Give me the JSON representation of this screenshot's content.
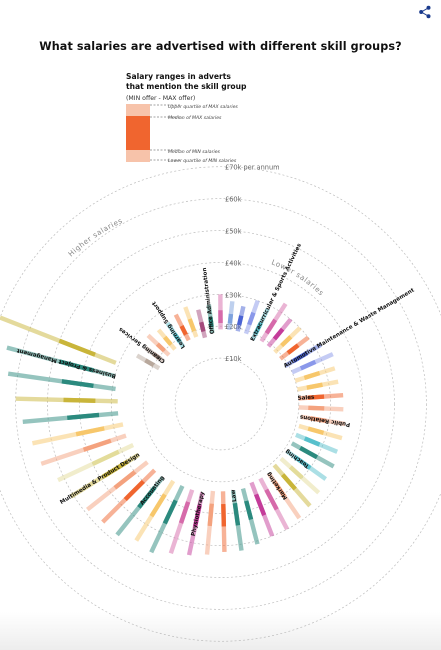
{
  "page": {
    "title": "What salaries are advertised with different skill groups?",
    "share_icon": "share-icon"
  },
  "legend": {
    "title_line1": "Salary ranges in adverts",
    "title_line2": "that mention the skill group",
    "subtitle": "(MIN offer - MAX offer)",
    "items": [
      "Upper quartile of MAX salaries",
      "Median of MAX salaries",
      "Median of MIN salaries",
      "Lower quartile of MIN salaries"
    ],
    "colors": {
      "outer": "#f7c3aa",
      "inner": "#f0652f"
    }
  },
  "labels": {
    "per_annum": "per annum",
    "higher": "Higher salaries",
    "lower": "Lower salaries"
  },
  "chart_data": {
    "type": "radial-range",
    "title": "What salaries are advertised with different skill groups?",
    "value_unit": "£k per annum",
    "rings": [
      {
        "value": 10,
        "label": "£10k"
      },
      {
        "value": 20,
        "label": "£20k"
      },
      {
        "value": 30,
        "label": "£30k"
      },
      {
        "value": 40,
        "label": "£40k"
      },
      {
        "value": 50,
        "label": "£50k"
      },
      {
        "value": 60,
        "label": "£60k"
      },
      {
        "value": 70,
        "label": "£70k"
      }
    ],
    "ordering": "bars sorted clockwise from lower salaries to higher salaries",
    "series_fields": [
      "lq_min",
      "med_min",
      "med_max",
      "uq_max"
    ],
    "skills": [
      {
        "name": "",
        "color": "#b8a89c",
        "values": [
          18,
          20,
          23,
          26
        ]
      },
      {
        "name": "Cleaning Services",
        "color": "#a88f84",
        "values": [
          18,
          19.5,
          22,
          25
        ]
      },
      {
        "name": "",
        "color": "#f4a27e",
        "values": [
          18,
          20,
          23,
          27
        ]
      },
      {
        "name": "",
        "color": "#f7c76b",
        "values": [
          18,
          20,
          23,
          26
        ]
      },
      {
        "name": "Learning Support",
        "color": "#57c0cc",
        "values": [
          17,
          19,
          22,
          26
        ]
      },
      {
        "name": "",
        "color": "#f0652f",
        "values": [
          18,
          20,
          23,
          27
        ]
      },
      {
        "name": "",
        "color": "#f7c76b",
        "values": [
          18,
          20,
          24,
          28
        ]
      },
      {
        "name": "",
        "color": "#a44a7c",
        "values": [
          17,
          19,
          22,
          26
        ]
      },
      {
        "name": "Office Administration",
        "color": "#2b8a7e",
        "values": [
          18,
          20,
          23,
          27
        ]
      },
      {
        "name": "",
        "color": "#d66aaa",
        "values": [
          19,
          21,
          25,
          30
        ]
      },
      {
        "name": "",
        "color": "#7ea2de",
        "values": [
          19,
          21,
          24,
          28
        ]
      },
      {
        "name": "",
        "color": "#4a63d4",
        "values": [
          19,
          21,
          24,
          27
        ]
      },
      {
        "name": "",
        "color": "#8a98ea",
        "values": [
          19,
          22,
          26,
          30
        ]
      },
      {
        "name": "Extracurricular & Sports Activities",
        "color": "#57c0cc",
        "values": [
          18,
          20,
          24,
          29
        ]
      },
      {
        "name": "",
        "color": "#d66aaa",
        "values": [
          19,
          22,
          27,
          33
        ]
      },
      {
        "name": "",
        "color": "#c43c9a",
        "values": [
          19,
          22,
          26,
          30
        ]
      },
      {
        "name": "",
        "color": "#f7c76b",
        "values": [
          19,
          22,
          26,
          30
        ]
      },
      {
        "name": "",
        "color": "#f0652f",
        "values": [
          19,
          22,
          26,
          30
        ]
      },
      {
        "name": "Automotive Maintenance & Waste Management",
        "color": "#4a63d4",
        "values": [
          19,
          22,
          27,
          32
        ]
      },
      {
        "name": "",
        "color": "#8a98ea",
        "values": [
          20,
          23,
          28,
          34
        ]
      },
      {
        "name": "",
        "color": "#f7c76b",
        "values": [
          20,
          23,
          28,
          33
        ]
      },
      {
        "name": "",
        "color": "#f7c76b",
        "values": [
          20,
          23,
          28,
          33
        ]
      },
      {
        "name": "Sales",
        "color": "#f0652f",
        "values": [
          20,
          23,
          28,
          34
        ]
      },
      {
        "name": "",
        "color": "#f4a27e",
        "values": [
          20,
          23,
          28,
          34
        ]
      },
      {
        "name": "Public Relations",
        "color": "#f4a27e",
        "values": [
          21,
          24,
          29,
          35
        ]
      },
      {
        "name": "",
        "color": "#f7c76b",
        "values": [
          21,
          24,
          29,
          35
        ]
      },
      {
        "name": "",
        "color": "#57c0cc",
        "values": [
          21,
          24,
          29,
          35
        ]
      },
      {
        "name": "",
        "color": "#2b8a7e",
        "values": [
          21,
          24,
          30,
          36
        ]
      },
      {
        "name": "Teaching",
        "color": "#57c0cc",
        "values": [
          21,
          24,
          30,
          36
        ]
      },
      {
        "name": "",
        "color": "#e3dc9a",
        "values": [
          21,
          25,
          30,
          37
        ]
      },
      {
        "name": "",
        "color": "#c9b53a",
        "values": [
          21,
          25,
          31,
          38
        ]
      },
      {
        "name": "Marketing",
        "color": "#f4a27e",
        "values": [
          22,
          25,
          31,
          39
        ]
      },
      {
        "name": "",
        "color": "#d66aaa",
        "values": [
          22,
          26,
          33,
          40
        ]
      },
      {
        "name": "",
        "color": "#c43c9a",
        "values": [
          22,
          26,
          33,
          40
        ]
      },
      {
        "name": "",
        "color": "#2b8a7e",
        "values": [
          23,
          27,
          33,
          41
        ]
      },
      {
        "name": "Law",
        "color": "#2b8a7e",
        "values": [
          23,
          27,
          34,
          42
        ]
      },
      {
        "name": "",
        "color": "#f0652f",
        "values": [
          23,
          27,
          34,
          42
        ]
      },
      {
        "name": "",
        "color": "#f4a27e",
        "values": [
          23,
          27,
          34,
          43
        ]
      },
      {
        "name": "Physiotherapy",
        "color": "#c43c9a",
        "values": [
          24,
          28,
          35,
          44
        ]
      },
      {
        "name": "",
        "color": "#d66aaa",
        "values": [
          24,
          28,
          35,
          45
        ]
      },
      {
        "name": "",
        "color": "#2b8a7e",
        "values": [
          24,
          29,
          37,
          47
        ]
      },
      {
        "name": "",
        "color": "#f7c76b",
        "values": [
          24,
          29,
          37,
          46
        ]
      },
      {
        "name": "Accounting",
        "color": "#2b8a7e",
        "values": [
          25,
          29,
          37,
          48
        ]
      },
      {
        "name": "",
        "color": "#f0652f",
        "values": [
          25,
          30,
          38,
          48
        ]
      },
      {
        "name": "",
        "color": "#f4a27e",
        "values": [
          25,
          30,
          38,
          49
        ]
      },
      {
        "name": "Multimedia & Product Design",
        "color": "#c9b53a",
        "values": [
          26,
          30,
          39,
          51
        ]
      },
      {
        "name": "",
        "color": "#e3dc9a",
        "values": [
          26,
          31,
          40,
          52
        ]
      },
      {
        "name": "",
        "color": "#f4a27e",
        "values": [
          27,
          32,
          41,
          55
        ]
      },
      {
        "name": "",
        "color": "#f7c76b",
        "values": [
          27,
          33,
          42,
          56
        ]
      },
      {
        "name": "",
        "color": "#2b8a7e",
        "values": [
          28,
          34,
          44,
          58
        ]
      },
      {
        "name": "",
        "color": "#c9b53a",
        "values": [
          28,
          35,
          45,
          60
        ]
      },
      {
        "name": "",
        "color": "#2b8a7e",
        "values": [
          29,
          36,
          46,
          63
        ]
      },
      {
        "name": "Business & Project Management",
        "color": "#2b8a7e",
        "values": [
          30,
          37,
          48,
          65
        ]
      },
      {
        "name": "",
        "color": "#c9b53a",
        "values": [
          31,
          38,
          50,
          70
        ]
      }
    ]
  }
}
